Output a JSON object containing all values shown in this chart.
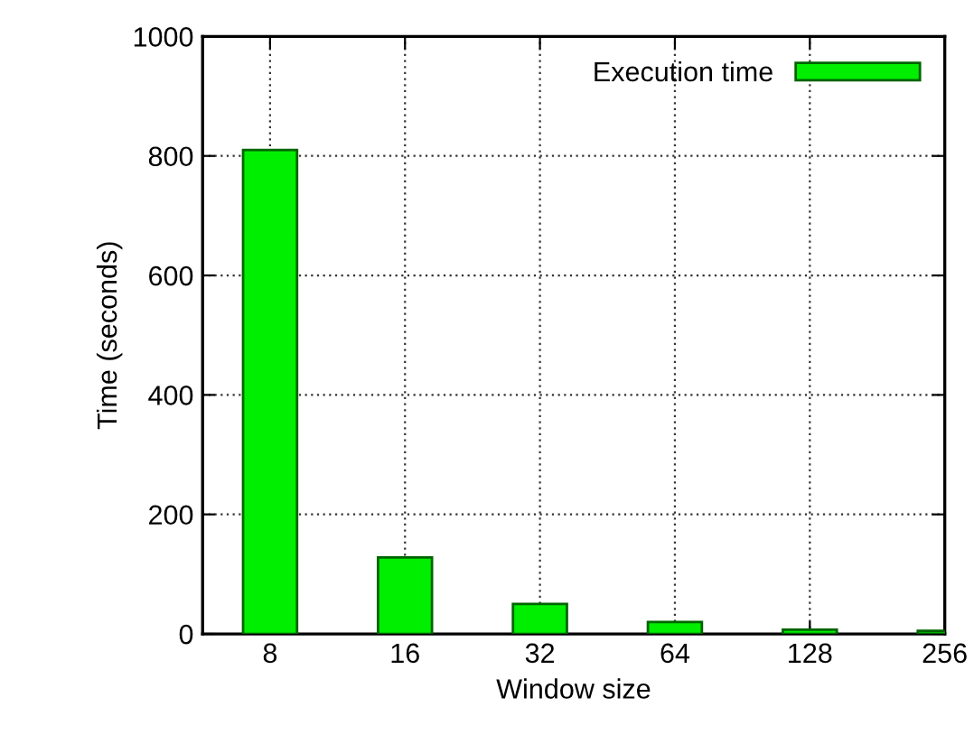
{
  "chart_data": {
    "type": "bar",
    "xlabel": "Window size",
    "ylabel": "Time (seconds)",
    "categories": [
      "8",
      "16",
      "32",
      "64",
      "128",
      "256"
    ],
    "series": [
      {
        "name": "Execution time",
        "color": "#00ee00",
        "values": [
          810,
          128,
          50,
          20,
          7,
          5
        ]
      }
    ],
    "ylim": [
      0,
      1000
    ],
    "yticks": [
      0,
      200,
      400,
      600,
      800,
      1000
    ],
    "grid": true,
    "legend": "top right"
  }
}
